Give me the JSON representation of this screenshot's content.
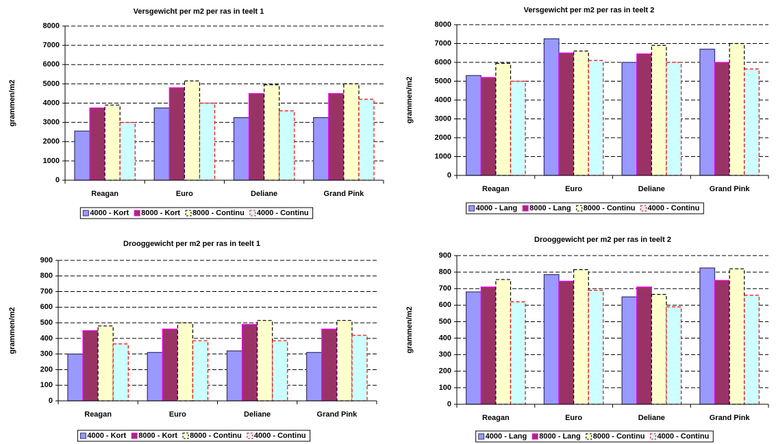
{
  "chart_data": [
    {
      "type": "bar",
      "title": "Versgewicht per m2 per ras in teelt 1",
      "ylabel": "grammen/m2",
      "categories": [
        "Reagan",
        "Euro",
        "Deliane",
        "Grand Pink"
      ],
      "series": [
        {
          "name": "4000 - Kort",
          "color": "#9999ff",
          "edgecolor": "#333366",
          "dashed": false,
          "values": [
            2550,
            3750,
            3250,
            3250
          ]
        },
        {
          "name": "8000 - Kort",
          "color": "#993366",
          "edgecolor": "#ff00ff",
          "dashed": false,
          "values": [
            3750,
            4800,
            4500,
            4500
          ]
        },
        {
          "name": "8000 - Continu",
          "color": "#ffffcc",
          "edgecolor": "#000000",
          "dashed": true,
          "values": [
            3900,
            5150,
            4950,
            5000
          ]
        },
        {
          "name": "4000 - Continu",
          "color": "#ccffff",
          "edgecolor": "#ff0000",
          "dashed": true,
          "values": [
            3000,
            4000,
            3600,
            4200
          ]
        }
      ],
      "ylim": [
        0,
        8000
      ],
      "yticks": [
        0,
        1000,
        2000,
        3000,
        4000,
        5000,
        6000,
        7000,
        8000
      ],
      "grid": true
    },
    {
      "type": "bar",
      "title": "Versgewicht per m2 per ras in teelt 2",
      "ylabel": "grammen/m2",
      "categories": [
        "Reagan",
        "Euro",
        "Deliane",
        "Grand Pink"
      ],
      "series": [
        {
          "name": "4000 - Lang",
          "color": "#9999ff",
          "edgecolor": "#333366",
          "dashed": false,
          "values": [
            5300,
            7250,
            6000,
            6700
          ]
        },
        {
          "name": "8000 - Lang",
          "color": "#993366",
          "edgecolor": "#ff00ff",
          "dashed": false,
          "values": [
            5200,
            6500,
            6450,
            6000
          ]
        },
        {
          "name": "8000 - Continu",
          "color": "#ffffcc",
          "edgecolor": "#000000",
          "dashed": true,
          "values": [
            5950,
            6600,
            6900,
            7000
          ]
        },
        {
          "name": "4000 - Continu",
          "color": "#ccffff",
          "edgecolor": "#ff0000",
          "dashed": true,
          "values": [
            5000,
            6100,
            6000,
            5650
          ]
        }
      ],
      "ylim": [
        0,
        8000
      ],
      "yticks": [
        0,
        1000,
        2000,
        3000,
        4000,
        5000,
        6000,
        7000,
        8000
      ],
      "grid": true
    },
    {
      "type": "bar",
      "title": "Drooggewicht per m2 per ras in teelt 1",
      "ylabel": "grammen/m2",
      "categories": [
        "Reagan",
        "Euro",
        "Deliane",
        "Grand Pink"
      ],
      "series": [
        {
          "name": "4000 - Kort",
          "color": "#9999ff",
          "edgecolor": "#333366",
          "dashed": false,
          "values": [
            300,
            310,
            320,
            310
          ]
        },
        {
          "name": "8000 - Kort",
          "color": "#993366",
          "edgecolor": "#ff00ff",
          "dashed": false,
          "values": [
            450,
            460,
            490,
            460
          ]
        },
        {
          "name": "8000 - Continu",
          "color": "#ffffcc",
          "edgecolor": "#000000",
          "dashed": true,
          "values": [
            480,
            500,
            515,
            515
          ]
        },
        {
          "name": "4000 - Continu",
          "color": "#ccffff",
          "edgecolor": "#ff0000",
          "dashed": true,
          "values": [
            365,
            385,
            385,
            420
          ]
        }
      ],
      "ylim": [
        0,
        900
      ],
      "yticks": [
        0,
        100,
        200,
        300,
        400,
        500,
        600,
        700,
        800,
        900
      ],
      "grid": true
    },
    {
      "type": "bar",
      "title": "Drooggewicht per m2 per ras in teelt 2",
      "ylabel": "grammen/m2",
      "categories": [
        "Reagan",
        "Euro",
        "Deliane",
        "Grand Pink"
      ],
      "series": [
        {
          "name": "4000 - Lang",
          "color": "#9999ff",
          "edgecolor": "#333366",
          "dashed": false,
          "values": [
            680,
            785,
            650,
            825
          ]
        },
        {
          "name": "8000 - Lang",
          "color": "#993366",
          "edgecolor": "#ff00ff",
          "dashed": false,
          "values": [
            710,
            745,
            710,
            750
          ]
        },
        {
          "name": "8000 - Continu",
          "color": "#ffffcc",
          "edgecolor": "#000000",
          "dashed": true,
          "values": [
            755,
            815,
            665,
            820
          ]
        },
        {
          "name": "4000 - Continu",
          "color": "#ccffff",
          "edgecolor": "#ff0000",
          "dashed": true,
          "values": [
            620,
            690,
            590,
            660
          ]
        }
      ],
      "ylim": [
        0,
        900
      ],
      "yticks": [
        0,
        100,
        200,
        300,
        400,
        500,
        600,
        700,
        800,
        900
      ],
      "grid": true
    }
  ]
}
